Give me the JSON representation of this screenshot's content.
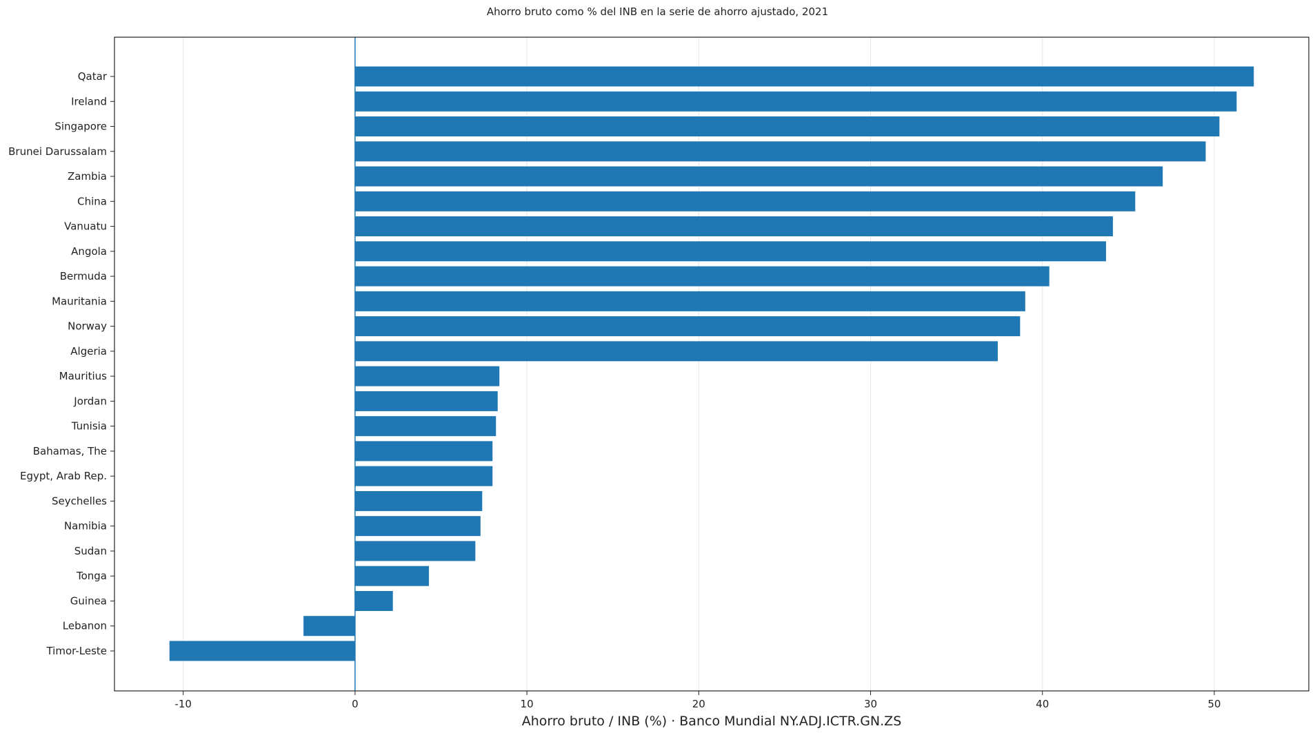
{
  "chart_data": {
    "type": "bar",
    "orientation": "horizontal",
    "title": "Ahorro bruto como % del INB en la serie de ahorro ajustado, 2021",
    "xlabel": "Ahorro bruto / INB (%) · Banco Mundial NY.ADJ.ICTR.GN.ZS",
    "ylabel": "",
    "xlim": [
      -14,
      55.5
    ],
    "xticks": [
      -10,
      0,
      10,
      20,
      30,
      40,
      50
    ],
    "grid": "vertical",
    "bar_color": "#1f77b4",
    "zero_line": 0,
    "categories": [
      "Qatar",
      "Ireland",
      "Singapore",
      "Brunei Darussalam",
      "Zambia",
      "China",
      "Vanuatu",
      "Angola",
      "Bermuda",
      "Mauritania",
      "Norway",
      "Algeria",
      "Mauritius",
      "Jordan",
      "Tunisia",
      "Bahamas, The",
      "Egypt, Arab Rep.",
      "Seychelles",
      "Namibia",
      "Sudan",
      "Tonga",
      "Guinea",
      "Lebanon",
      "Timor-Leste"
    ],
    "values": [
      52.3,
      51.3,
      50.3,
      49.5,
      47.0,
      45.4,
      44.1,
      43.7,
      40.4,
      39.0,
      38.7,
      37.4,
      8.4,
      8.3,
      8.2,
      8.0,
      8.0,
      7.4,
      7.3,
      7.0,
      4.3,
      2.2,
      -3.0,
      -10.8
    ]
  }
}
